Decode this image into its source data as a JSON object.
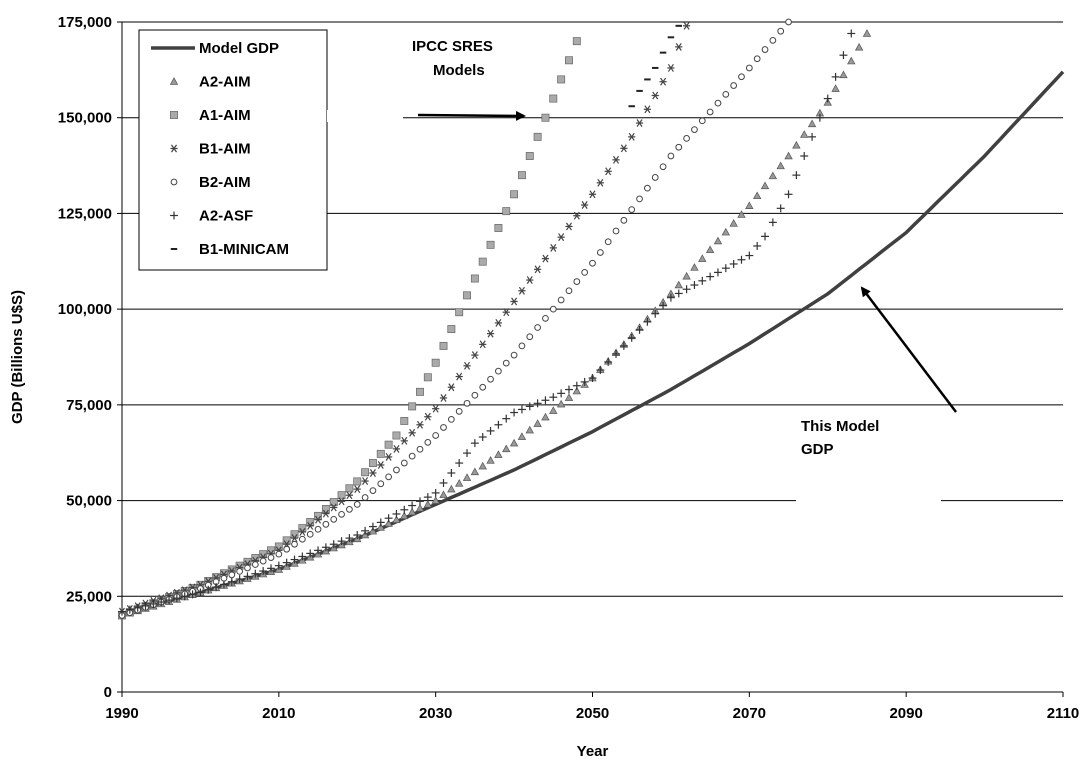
{
  "chart_data": {
    "type": "scatter",
    "title": "",
    "xlabel": "Year",
    "ylabel": "GDP (Billions U$S)",
    "xlim": [
      1990,
      2110
    ],
    "ylim": [
      0,
      175000
    ],
    "xticks": [
      1990,
      2010,
      2030,
      2050,
      2070,
      2090,
      2110
    ],
    "yticks": [
      0,
      25000,
      50000,
      75000,
      100000,
      125000,
      150000,
      175000
    ],
    "xtick_labels": [
      "1990",
      "2010",
      "2030",
      "2050",
      "2070",
      "2090",
      "2110"
    ],
    "ytick_labels": [
      "0",
      "25,000",
      "50,000",
      "75,000",
      "100,000",
      "125,000",
      "150,000",
      "175,000"
    ],
    "grid": "horizontal",
    "legend_position": "top-left",
    "series": [
      {
        "name": "Model GDP",
        "kind": "line",
        "color": "#404040",
        "x": [
          1990,
          2000,
          2010,
          2020,
          2030,
          2040,
          2050,
          2060,
          2070,
          2080,
          2090,
          2100,
          2110
        ],
        "y": [
          20500,
          26000,
          32000,
          40000,
          49000,
          58000,
          68000,
          79000,
          91000,
          104000,
          120000,
          140000,
          162000
        ]
      },
      {
        "name": "A2-AIM",
        "kind": "scatter",
        "marker": "triangle",
        "color": "#999999",
        "x": [
          1990,
          2000,
          2010,
          2020,
          2030,
          2040,
          2050,
          2060,
          2070,
          2075,
          2080,
          2085
        ],
        "y": [
          20000,
          26000,
          32000,
          40000,
          50000,
          65000,
          82000,
          104000,
          127000,
          140000,
          154000,
          172000
        ]
      },
      {
        "name": "A1-AIM",
        "kind": "scatter",
        "marker": "square",
        "color": "#aaaaaa",
        "x": [
          1990,
          2000,
          2010,
          2015,
          2020,
          2025,
          2030,
          2035,
          2040,
          2045,
          2048
        ],
        "y": [
          20000,
          28000,
          38000,
          46000,
          55000,
          67000,
          86000,
          108000,
          130000,
          155000,
          170000
        ]
      },
      {
        "name": "B1-AIM",
        "kind": "scatter",
        "marker": "asterisk",
        "color": "#444444",
        "x": [
          1990,
          2000,
          2010,
          2020,
          2030,
          2040,
          2050,
          2055,
          2060,
          2062
        ],
        "y": [
          21000,
          28000,
          37000,
          53000,
          74000,
          102000,
          130000,
          145000,
          163000,
          174000
        ]
      },
      {
        "name": "B2-AIM",
        "kind": "scatter",
        "marker": "circle",
        "color": "#444444",
        "x": [
          1990,
          2000,
          2010,
          2020,
          2030,
          2040,
          2050,
          2060,
          2070,
          2075
        ],
        "y": [
          20000,
          27000,
          36000,
          49000,
          67000,
          88000,
          112000,
          140000,
          163000,
          175000
        ]
      },
      {
        "name": "A2-ASF",
        "kind": "scatter",
        "marker": "plus",
        "color": "#333333",
        "x": [
          1990,
          2000,
          2010,
          2020,
          2030,
          2035,
          2040,
          2045,
          2050,
          2060,
          2070,
          2072,
          2075,
          2080,
          2083
        ],
        "y": [
          21000,
          26000,
          33000,
          41000,
          52000,
          65000,
          73000,
          77000,
          82000,
          103000,
          114000,
          119000,
          130000,
          155000,
          172000
        ]
      },
      {
        "name": "B1-MINICAM",
        "kind": "scatter",
        "marker": "dash",
        "color": "#222222",
        "x": [
          2055,
          2056,
          2057,
          2058,
          2059,
          2060,
          2061
        ],
        "y": [
          153000,
          157000,
          160000,
          163000,
          167000,
          171000,
          174000
        ]
      }
    ],
    "annotations": [
      {
        "lines": [
          "IPCC SRES",
          "Models"
        ]
      },
      {
        "lines": [
          "This Model",
          "GDP"
        ]
      }
    ]
  }
}
